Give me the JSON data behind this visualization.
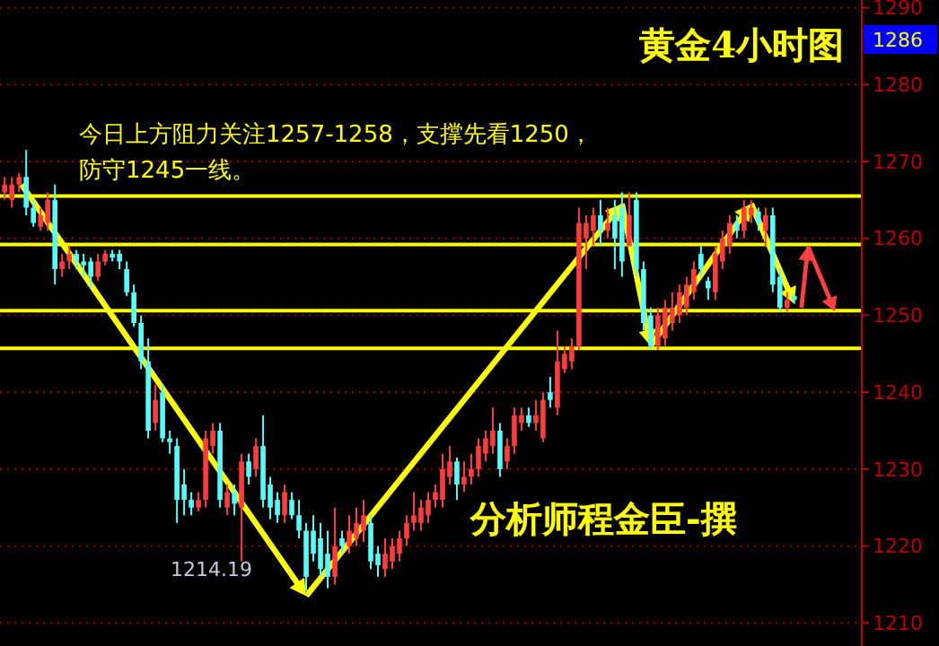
{
  "chart_data": {
    "type": "candlestick",
    "title": "黄金4小时图",
    "categories": [
      null,
      null,
      null,
      null,
      null,
      null,
      null,
      null,
      null,
      null,
      null,
      null,
      null,
      null,
      null,
      null,
      null,
      null,
      null,
      null,
      null,
      null,
      null,
      null,
      null,
      null,
      null,
      null,
      null,
      null,
      null,
      null,
      null,
      null,
      null,
      null,
      null,
      null,
      null,
      null,
      null,
      null,
      null,
      null,
      null,
      null,
      null,
      null,
      null,
      null,
      null,
      null,
      null,
      null,
      null,
      null,
      null,
      null,
      null,
      null,
      null,
      null,
      null,
      null,
      null,
      null,
      null,
      null,
      null,
      null,
      null,
      null,
      null,
      null,
      null,
      null,
      null,
      null,
      null,
      null,
      null,
      null,
      null,
      null,
      null,
      null,
      null,
      null,
      null,
      null,
      null,
      null,
      null,
      null,
      null,
      null,
      null,
      null,
      null,
      null,
      null,
      null,
      null,
      null,
      null,
      null,
      null,
      null,
      null,
      null,
      null
    ],
    "ohlc": [
      [
        1266,
        1268,
        1265,
        1267
      ],
      [
        1265,
        1268,
        1264,
        1267
      ],
      [
        1267,
        1268.5,
        1266,
        1268
      ],
      [
        1268,
        1271.5,
        1263,
        1264
      ],
      [
        1264,
        1265,
        1261.5,
        1262
      ],
      [
        1261.5,
        1264,
        1261,
        1263
      ],
      [
        1262,
        1266,
        1261,
        1265
      ],
      [
        1265,
        1267,
        1254,
        1256
      ],
      [
        1256,
        1258,
        1255,
        1257
      ],
      [
        1257,
        1259,
        1256,
        1258
      ],
      [
        1258,
        1258.5,
        1256,
        1257
      ],
      [
        1257,
        1258,
        1255,
        1256.5
      ],
      [
        1257,
        1257.5,
        1253.5,
        1255
      ],
      [
        1255,
        1258,
        1254.5,
        1257
      ],
      [
        1257,
        1258.5,
        1256.5,
        1258
      ],
      [
        1258,
        1258.5,
        1257,
        1257.5
      ],
      [
        1258,
        1258.5,
        1256,
        1257
      ],
      [
        1256,
        1257,
        1252.5,
        1253
      ],
      [
        1253,
        1254,
        1248.5,
        1249
      ],
      [
        1249,
        1250,
        1243,
        1244
      ],
      [
        1244,
        1247,
        1234,
        1235
      ],
      [
        1236,
        1241,
        1235,
        1239
      ],
      [
        1240,
        1241,
        1233.5,
        1234
      ],
      [
        1234,
        1235,
        1232,
        1233.5
      ],
      [
        1233,
        1234,
        1223,
        1226
      ],
      [
        1228,
        1230,
        1224,
        1226
      ],
      [
        1226,
        1227,
        1224,
        1225
      ],
      [
        1225,
        1227,
        1224.5,
        1226
      ],
      [
        1226,
        1235,
        1225,
        1234
      ],
      [
        1233,
        1236,
        1232,
        1235
      ],
      [
        1235,
        1236,
        1225,
        1226
      ],
      [
        1225,
        1228,
        1224,
        1227
      ],
      [
        1227,
        1228,
        1224,
        1225.5
      ],
      [
        1225,
        1232,
        1218,
        1231
      ],
      [
        1231,
        1232,
        1228,
        1229
      ],
      [
        1230,
        1234,
        1229,
        1233
      ],
      [
        1233,
        1237,
        1225,
        1226
      ],
      [
        1228,
        1229,
        1223.5,
        1225
      ],
      [
        1226,
        1227,
        1223,
        1224
      ],
      [
        1224,
        1228,
        1223,
        1227
      ],
      [
        1226,
        1227,
        1223.5,
        1224
      ],
      [
        1224,
        1226,
        1221,
        1222
      ],
      [
        1222,
        1223,
        1214.19,
        1216
      ],
      [
        1222,
        1224,
        1218,
        1219
      ],
      [
        1221,
        1223,
        1216,
        1217
      ],
      [
        1219,
        1222,
        1214.5,
        1216
      ],
      [
        1216,
        1225,
        1215,
        1220
      ],
      [
        1221,
        1222,
        1219,
        1220
      ],
      [
        1220,
        1224,
        1219,
        1222
      ],
      [
        1221,
        1225,
        1220,
        1223
      ],
      [
        1222,
        1226,
        1220.5,
        1224
      ],
      [
        1223,
        1224,
        1217,
        1218
      ],
      [
        1219,
        1220,
        1216,
        1217.5
      ],
      [
        1217,
        1221,
        1216,
        1219
      ],
      [
        1218,
        1221,
        1217,
        1220
      ],
      [
        1219,
        1222,
        1218,
        1221
      ],
      [
        1221,
        1224,
        1220,
        1223
      ],
      [
        1223,
        1227,
        1222,
        1224
      ],
      [
        1223,
        1226,
        1222,
        1225
      ],
      [
        1224,
        1227,
        1223,
        1226
      ],
      [
        1226,
        1228,
        1225,
        1227
      ],
      [
        1226,
        1232,
        1225,
        1230
      ],
      [
        1229,
        1233,
        1228,
        1231
      ],
      [
        1231,
        1231.5,
        1226,
        1228
      ],
      [
        1228,
        1231,
        1227,
        1229
      ],
      [
        1229,
        1232,
        1228,
        1230
      ],
      [
        1230,
        1234,
        1229,
        1233
      ],
      [
        1232,
        1235,
        1231,
        1234
      ],
      [
        1233,
        1238,
        1232,
        1235
      ],
      [
        1235,
        1236,
        1229,
        1230
      ],
      [
        1231,
        1234,
        1230,
        1233
      ],
      [
        1233,
        1238,
        1232,
        1237
      ],
      [
        1236,
        1238,
        1235,
        1237
      ],
      [
        1237,
        1238,
        1235.5,
        1236
      ],
      [
        1236,
        1239,
        1235,
        1237
      ],
      [
        1234,
        1240,
        1233.5,
        1239
      ],
      [
        1240,
        1242,
        1238,
        1239
      ],
      [
        1238,
        1248,
        1237,
        1244
      ],
      [
        1243,
        1246,
        1242.5,
        1245
      ],
      [
        1244,
        1247,
        1243,
        1246
      ],
      [
        1246,
        1264,
        1245.5,
        1262
      ],
      [
        1260,
        1263,
        1256,
        1262
      ],
      [
        1261,
        1264,
        1259,
        1263
      ],
      [
        1263,
        1265,
        1259,
        1261
      ],
      [
        1261,
        1264,
        1260,
        1262
      ],
      [
        1263,
        1265,
        1256,
        1260
      ],
      [
        1264,
        1266,
        1255,
        1257
      ],
      [
        1259,
        1266,
        1259,
        1263
      ],
      [
        1265,
        1266,
        1255,
        1256
      ],
      [
        1256,
        1257,
        1248,
        1249
      ],
      [
        1250,
        1251,
        1245.5,
        1246
      ],
      [
        1246,
        1251,
        1245.5,
        1250
      ],
      [
        1247,
        1252,
        1246,
        1251
      ],
      [
        1249,
        1253,
        1248,
        1251
      ],
      [
        1250,
        1254,
        1249,
        1253
      ],
      [
        1251,
        1255,
        1250,
        1254
      ],
      [
        1253,
        1257,
        1252,
        1256
      ],
      [
        1258,
        1259,
        1255,
        1256
      ],
      [
        1254.5,
        1255,
        1252,
        1253.5
      ],
      [
        1253,
        1259,
        1252,
        1258
      ],
      [
        1257,
        1261,
        1256,
        1260
      ],
      [
        1259,
        1263,
        1258,
        1262
      ],
      [
        1262,
        1263,
        1260,
        1261
      ],
      [
        1261,
        1265,
        1260,
        1264
      ],
      [
        1263,
        1265,
        1262,
        1264
      ],
      [
        1263.5,
        1264,
        1261,
        1262
      ],
      [
        1261,
        1264,
        1259,
        1263
      ],
      [
        1263,
        1264,
        1253,
        1254
      ],
      [
        1255,
        1256,
        1250.5,
        1251
      ],
      [
        1251,
        1253,
        1250.5,
        1252
      ],
      [
        1252.5,
        1253,
        1251.5,
        1252
      ]
    ],
    "colors": [
      "#ff3c3c",
      "#ff3c3c",
      "#ff3c3c",
      "#54fcfc",
      "#54fcfc",
      "#ff3c3c",
      "#ff3c3c",
      "#54fcfc",
      "#ff3c3c",
      "#ff3c3c",
      "#54fcfc",
      "#54fcfc",
      "#54fcfc",
      "#ff3c3c",
      "#ff3c3c",
      "#54fcfc",
      "#54fcfc",
      "#54fcfc",
      "#54fcfc",
      "#54fcfc",
      "#54fcfc",
      "#ff3c3c",
      "#54fcfc",
      "#54fcfc",
      "#54fcfc",
      "#54fcfc",
      "#54fcfc",
      "#ff3c3c",
      "#ff3c3c",
      "#ff3c3c",
      "#54fcfc",
      "#ff3c3c",
      "#54fcfc",
      "#ff3c3c",
      "#54fcfc",
      "#ff3c3c",
      "#54fcfc",
      "#54fcfc",
      "#54fcfc",
      "#ff3c3c",
      "#54fcfc",
      "#54fcfc",
      "#54fcfc",
      "#54fcfc",
      "#54fcfc",
      "#54fcfc",
      "#ff3c3c",
      "#54fcfc",
      "#ff3c3c",
      "#ff3c3c",
      "#ff3c3c",
      "#54fcfc",
      "#54fcfc",
      "#ff3c3c",
      "#ff3c3c",
      "#ff3c3c",
      "#ff3c3c",
      "#ff3c3c",
      "#ff3c3c",
      "#ff3c3c",
      "#ff3c3c",
      "#ff3c3c",
      "#ff3c3c",
      "#54fcfc",
      "#ff3c3c",
      "#ff3c3c",
      "#ff3c3c",
      "#ff3c3c",
      "#ff3c3c",
      "#54fcfc",
      "#ff3c3c",
      "#ff3c3c",
      "#ff3c3c",
      "#54fcfc",
      "#ff3c3c",
      "#ff3c3c",
      "#54fcfc",
      "#ff3c3c",
      "#ff3c3c",
      "#ff3c3c",
      "#ff3c3c",
      "#ff3c3c",
      "#ff3c3c",
      "#54fcfc",
      "#ff3c3c",
      "#54fcfc",
      "#54fcfc",
      "#ff3c3c",
      "#54fcfc",
      "#54fcfc",
      "#54fcfc",
      "#ff3c3c",
      "#ff3c3c",
      "#ff3c3c",
      "#ff3c3c",
      "#ff3c3c",
      "#ff3c3c",
      "#54fcfc",
      "#54fcfc",
      "#ff3c3c",
      "#ff3c3c",
      "#ff3c3c",
      "#54fcfc",
      "#ff3c3c",
      "#ff3c3c",
      "#54fcfc",
      "#ff3c3c",
      "#54fcfc",
      "#54fcfc",
      "#ff3c3c",
      "#54fcfc"
    ],
    "ylim": [
      1207,
      1291
    ],
    "yticks": [
      1210,
      1220,
      1230,
      1240,
      1250,
      1260,
      1270,
      1280,
      1290
    ],
    "grid": "y",
    "ref_lines": [
      {
        "axis": "y",
        "value": 1265.5,
        "color": "#ffff00"
      },
      {
        "axis": "y",
        "value": 1245.7,
        "color": "#ffff00"
      },
      {
        "axis": "y",
        "value": 1259.2,
        "color": "#ffff00"
      },
      {
        "axis": "y",
        "value": 1250.6,
        "color": "#ffff00"
      }
    ],
    "annotations": [
      "今日上方阻力关注1257-1258，支撑先看1250，",
      "防守1245一线。",
      "1214.19",
      "分析师程金臣-撰",
      "1286"
    ]
  }
}
